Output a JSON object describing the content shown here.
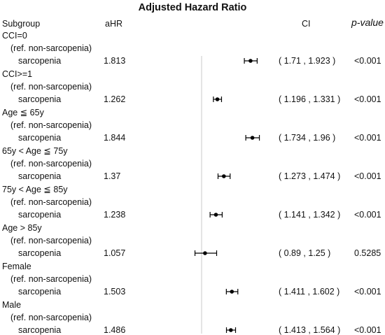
{
  "chart_data": {
    "type": "forest",
    "title": "Adjusted Hazard Ratio",
    "columns": {
      "subgroup": "Subgroup",
      "ahr": "aHR",
      "ci": "CI",
      "pvalue": "p-value"
    },
    "reference_label": "(ref. non-sarcopenia)",
    "x_ticks": [
      "0",
      "1",
      "2"
    ],
    "xlim": [
      0,
      2
    ],
    "reference_line": 1,
    "rows": [
      {
        "group": "CCI=0",
        "label": "sarcopenia",
        "ahr": "1.813",
        "ci": "( 1.71 , 1.923 )",
        "p": "<0.001",
        "est": 1.813,
        "lo": 1.71,
        "hi": 1.923
      },
      {
        "group": "CCI>=1",
        "label": "sarcopenia",
        "ahr": "1.262",
        "ci": "( 1.196 , 1.331 )",
        "p": "<0.001",
        "est": 1.262,
        "lo": 1.196,
        "hi": 1.331
      },
      {
        "group": "Age ≦ 65y",
        "label": "sarcopenia",
        "ahr": "1.844",
        "ci": "( 1.734 , 1.96 )",
        "p": "<0.001",
        "est": 1.844,
        "lo": 1.734,
        "hi": 1.96
      },
      {
        "group": "65y < Age ≦ 75y",
        "label": "sarcopenia",
        "ahr": "1.37",
        "ci": "( 1.273 , 1.474 )",
        "p": "<0.001",
        "est": 1.37,
        "lo": 1.273,
        "hi": 1.474
      },
      {
        "group": "75y < Age ≦ 85y",
        "label": "sarcopenia",
        "ahr": "1.238",
        "ci": "( 1.141 , 1.342 )",
        "p": "<0.001",
        "est": 1.238,
        "lo": 1.141,
        "hi": 1.342
      },
      {
        "group": "Age > 85y",
        "label": "sarcopenia",
        "ahr": "1.057",
        "ci": "( 0.89 , 1.25 )",
        "p": "0.5285",
        "est": 1.057,
        "lo": 0.89,
        "hi": 1.25
      },
      {
        "group": "Female",
        "label": "sarcopenia",
        "ahr": "1.503",
        "ci": "( 1.411 , 1.602 )",
        "p": "<0.001",
        "est": 1.503,
        "lo": 1.411,
        "hi": 1.602
      },
      {
        "group": "Male",
        "label": "sarcopenia",
        "ahr": "1.486",
        "ci": "( 1.413 , 1.564 )",
        "p": "<0.001",
        "est": 1.486,
        "lo": 1.413,
        "hi": 1.564
      }
    ]
  }
}
